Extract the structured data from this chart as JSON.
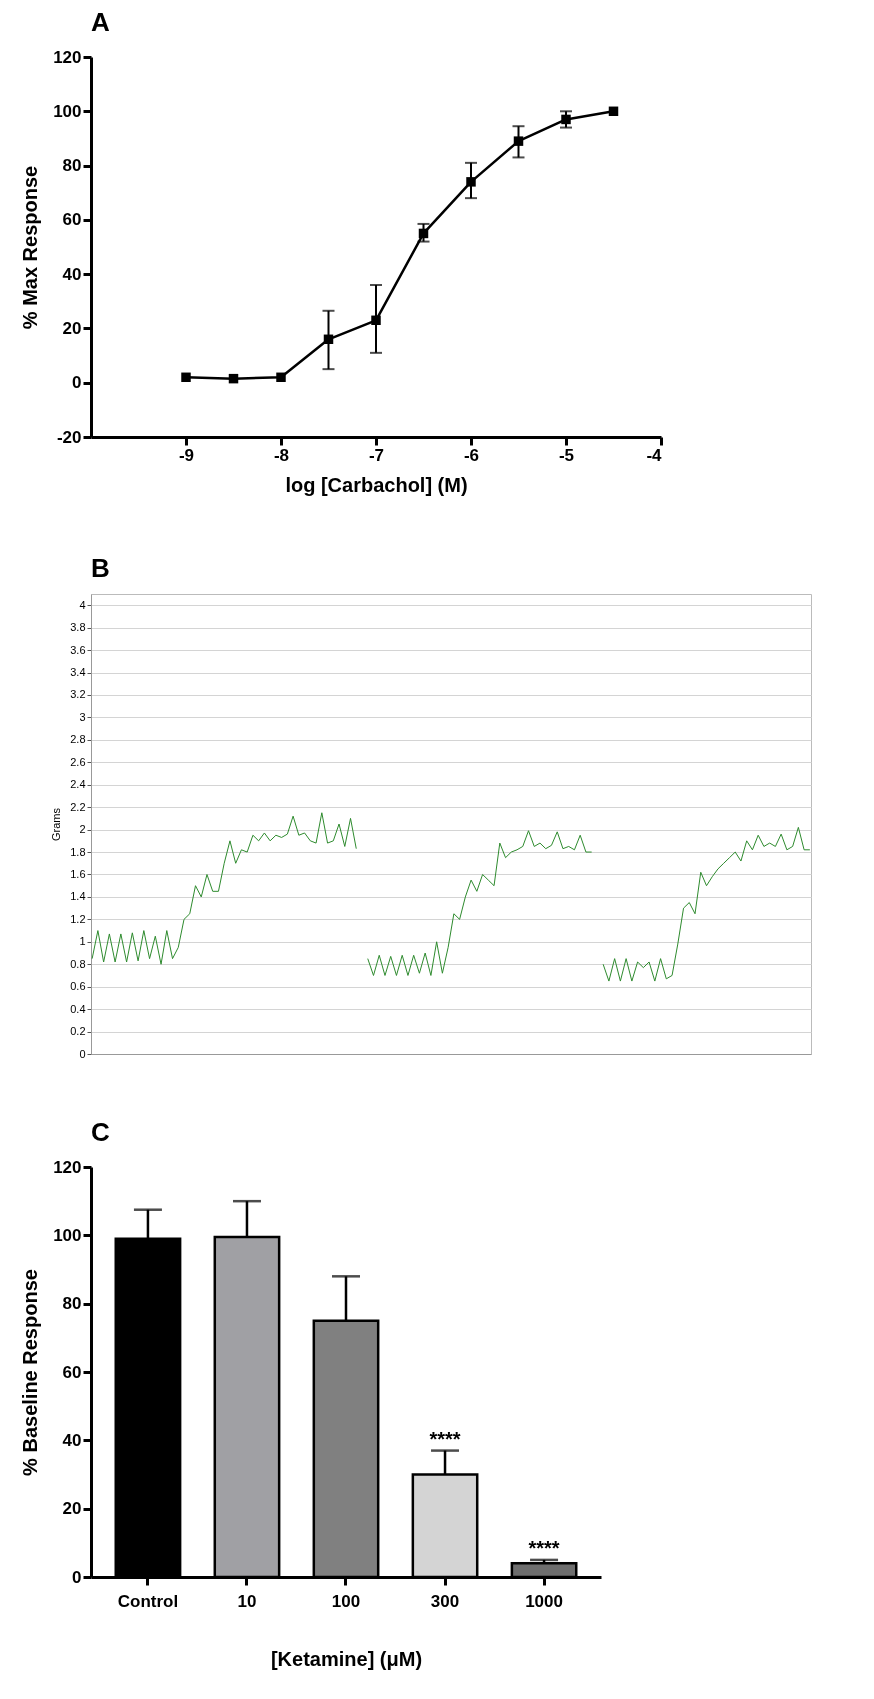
{
  "chart_data": [
    {
      "type": "line",
      "title": "A",
      "xlabel": "log [Carbachol] (M)",
      "ylabel": "% Max Response",
      "x": [
        -9,
        -8.5,
        -8,
        -7.5,
        -7,
        -6.5,
        -6,
        -5.5,
        -5,
        -4.5
      ],
      "series": [
        {
          "color": "#000000",
          "values": [
            2,
            1.5,
            2,
            16,
            23,
            55,
            74,
            89,
            97,
            100
          ],
          "errors": [
            null,
            null,
            null,
            [
              5,
              26.5
            ],
            [
              11,
              36
            ],
            [
              52,
              58.5
            ],
            [
              68,
              81
            ],
            [
              83,
              94.5
            ],
            [
              94,
              100
            ],
            null
          ]
        }
      ],
      "xlim": [
        -10,
        -4
      ],
      "xticks": [
        -9,
        -8,
        -7,
        -6,
        -5,
        -4
      ],
      "ylim": [
        -20,
        120
      ],
      "yticks": [
        -20,
        0,
        20,
        40,
        60,
        80,
        100,
        120
      ],
      "marker": "square",
      "line_style": "solid",
      "grid": false
    },
    {
      "type": "line",
      "title": "B",
      "ylabel": "Grams",
      "categories": [
        null,
        null,
        null,
        null,
        null,
        null,
        null,
        null,
        null,
        null,
        null,
        null,
        null,
        null,
        null,
        null,
        null,
        null,
        null,
        null,
        null,
        null,
        null,
        null,
        null,
        null,
        null,
        null,
        null,
        null,
        null,
        null,
        null,
        null,
        null,
        null,
        null,
        null,
        null,
        null,
        null,
        null,
        null,
        null,
        null,
        null,
        null,
        null,
        null,
        null,
        null,
        null,
        null,
        null,
        null,
        null,
        null,
        null,
        null,
        null,
        null,
        null,
        null,
        null,
        null,
        null,
        null,
        null,
        null,
        null,
        null,
        null,
        null,
        null,
        null,
        null,
        null,
        null,
        null,
        null,
        null,
        null,
        null,
        null,
        null,
        null,
        null,
        null,
        null,
        null,
        null,
        null,
        null,
        null,
        null,
        null,
        null,
        null,
        null,
        null,
        null,
        null,
        null,
        null,
        null,
        null,
        null,
        null,
        null,
        null,
        null,
        null,
        null,
        null,
        null,
        null,
        null,
        null,
        null,
        null,
        null,
        null,
        null,
        null,
        null,
        null
      ],
      "series": [
        {
          "color": "#2e8b2e",
          "values": [
            0.85,
            1.1,
            0.82,
            1.07,
            0.82,
            1.07,
            0.82,
            1.08,
            0.83,
            1.1,
            0.85,
            1.05,
            0.8,
            1.1,
            0.85,
            0.95,
            1.2,
            1.25,
            1.5,
            1.4,
            1.6,
            1.45,
            1.45,
            1.7,
            1.9,
            1.7,
            1.82,
            1.8,
            1.95,
            1.9,
            1.97,
            1.9,
            1.95,
            1.93,
            1.96,
            2.12,
            1.95,
            1.97,
            1.9,
            1.88,
            2.15,
            1.88,
            1.9,
            2.05,
            1.85,
            2.1,
            1.83,
            null,
            0.85,
            0.7,
            0.88,
            0.7,
            0.87,
            0.7,
            0.88,
            0.7,
            0.88,
            0.72,
            0.9,
            0.7,
            1.0,
            0.72,
            0.95,
            1.25,
            1.2,
            1.4,
            1.55,
            1.45,
            1.6,
            1.55,
            1.5,
            1.88,
            1.75,
            1.8,
            1.82,
            1.85,
            1.99,
            1.85,
            1.88,
            1.83,
            1.86,
            1.98,
            1.83,
            1.85,
            1.82,
            1.95,
            1.8,
            1.8,
            null,
            0.8,
            0.65,
            0.85,
            0.65,
            0.85,
            0.65,
            0.82,
            0.77,
            0.82,
            0.65,
            0.85,
            0.67,
            0.7,
            0.98,
            1.3,
            1.35,
            1.25,
            1.62,
            1.5,
            1.58,
            1.65,
            1.7,
            1.75,
            1.8,
            1.72,
            1.9,
            1.82,
            1.95,
            1.85,
            1.88,
            1.85,
            1.96,
            1.82,
            1.85,
            2.02,
            1.82,
            1.82
          ]
        }
      ],
      "ylim": [
        0,
        4.1
      ],
      "yticks": [
        0,
        0.2,
        0.4,
        0.6,
        0.8,
        1,
        1.2,
        1.4,
        1.6,
        1.8,
        2,
        2.2,
        2.4,
        2.6,
        2.8,
        3,
        3.2,
        3.4,
        3.6,
        3.8,
        4
      ],
      "grid": "y",
      "tick_labels": "y",
      "marker": "none",
      "line_style": "solid"
    },
    {
      "type": "bar",
      "title": "C",
      "xlabel": "[Ketamine] (μM)",
      "ylabel": "% Baseline Response",
      "categories": [
        "Control",
        "10",
        "100",
        "300",
        "1000"
      ],
      "values": [
        99,
        99.5,
        75,
        30,
        4
      ],
      "colors": [
        "#000000",
        "#a0a0a4",
        "#808080",
        "#d4d4d4",
        "#6e6e6e"
      ],
      "errors": [
        [
          99,
          107.5
        ],
        [
          99.5,
          110
        ],
        [
          75,
          88
        ],
        [
          30,
          37
        ],
        [
          4,
          5
        ]
      ],
      "ylim": [
        0,
        120
      ],
      "yticks": [
        0,
        20,
        40,
        60,
        80,
        100,
        120
      ],
      "grid": false,
      "annotations": [
        {
          "text": "****",
          "x": "300",
          "y": 37
        },
        {
          "text": "****",
          "x": "1000",
          "y": 5
        }
      ]
    }
  ]
}
